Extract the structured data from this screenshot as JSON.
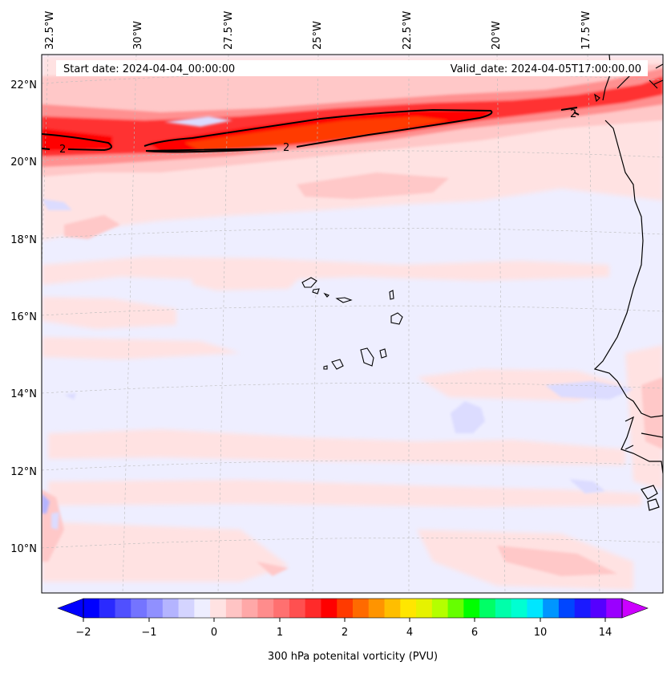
{
  "map": {
    "title_left": "Start date: 2024-04-04_00:00:00",
    "title_right": "Valid_date: 2024-04-05T17:00:00.00",
    "lon_labels": [
      "32.5°W",
      "30°W",
      "27.5°W",
      "25°W",
      "22.5°W",
      "20°W",
      "17.5°W"
    ],
    "lat_labels": [
      "22°N",
      "20°N",
      "18°N",
      "16°N",
      "14°N",
      "12°N",
      "10°N"
    ],
    "contour_labels": [
      "2",
      "2",
      "2"
    ],
    "colors": {
      "background": "#eeeeff",
      "pale_red": "#ffe2e2",
      "light_red": "#ffc8c8",
      "mid_red": "#ff9090",
      "strong_red": "#ff3030",
      "core_red": "#ff0000",
      "orange_red": "#ff3a00",
      "blue_light": "#dcdcff",
      "blue_mid": "#b4b4ff"
    }
  },
  "colorbar": {
    "label": "300 hPa potenital vorticity (PVU)",
    "tick_labels": [
      "−2",
      "−1",
      "0",
      "1",
      "2",
      "4",
      "6",
      "10",
      "14"
    ],
    "colors": [
      "#0000ff",
      "#2a2aff",
      "#5050ff",
      "#7474ff",
      "#9090ff",
      "#b4b4ff",
      "#d4d4ff",
      "#eeeeff",
      "#ffe2e2",
      "#ffc4c4",
      "#ffa8a8",
      "#ff8c8c",
      "#ff7070",
      "#ff5050",
      "#ff2a2a",
      "#ff0000",
      "#ff3a00",
      "#ff6a00",
      "#ff9400",
      "#ffbe00",
      "#ffe600",
      "#e6f200",
      "#b4ff00",
      "#66ff00",
      "#00ff00",
      "#00ff66",
      "#00ffaa",
      "#00ffd2",
      "#00e6ff",
      "#0096ff",
      "#0046ff",
      "#1a1aff",
      "#5500ff",
      "#9a00ff"
    ],
    "extend_low_color": "#0000ff",
    "extend_high_color": "#cc00ff"
  }
}
